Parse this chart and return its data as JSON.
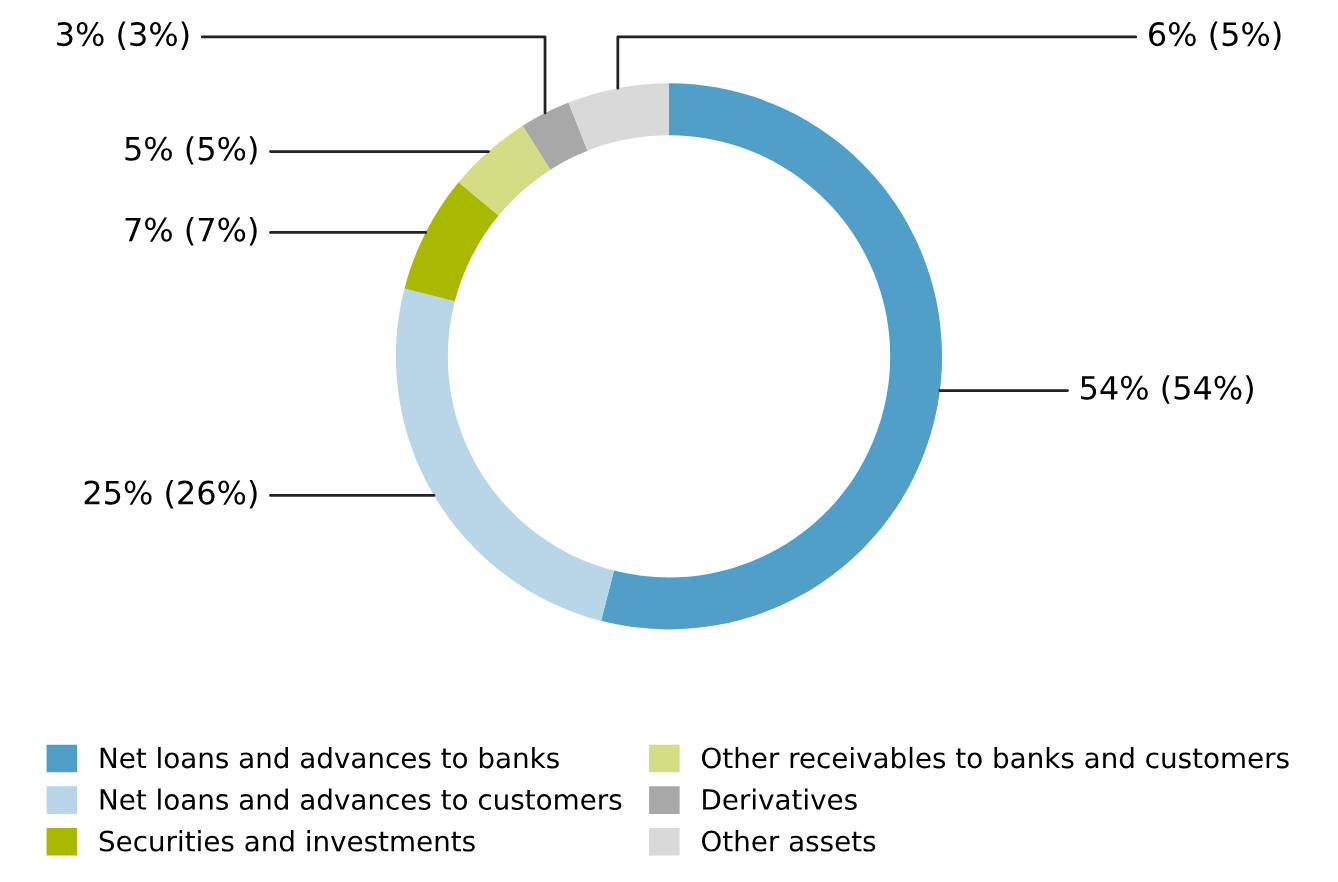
{
  "chart_data": {
    "type": "donut",
    "categories": [
      "Net loans and advances to banks",
      "Net loans and advances to customers",
      "Securities and investments",
      "Other receivables to banks and customers",
      "Derivatives",
      "Other assets"
    ],
    "values": [
      54,
      25,
      7,
      5,
      3,
      6
    ],
    "colors": [
      "#4f9fc8",
      "#b9d5e8",
      "#a9b800",
      "#d4dc84",
      "#a8a8a8",
      "#d9d9d9"
    ],
    "value_labels": [
      "54% (54%)",
      "25% (26%)",
      "7% (7%)",
      "5% (5%)",
      "3% (3%)",
      "6% (5%)"
    ],
    "legend": "bottom"
  }
}
